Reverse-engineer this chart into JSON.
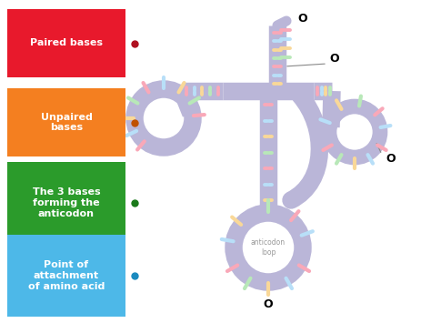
{
  "bg_color": "#ffffff",
  "trna_color": "#bab6d8",
  "trna_lw": 14,
  "base_colors": [
    "#f9a8b8",
    "#b8dff8",
    "#f9d898",
    "#b8e8b8"
  ],
  "anticodon_text": "anticodon\nloop",
  "legend_boxes": [
    {
      "label": "Paired bases",
      "color": "#e8192c",
      "dot_color": "#b01020",
      "lines": 1
    },
    {
      "label": "Unpaired\nbases",
      "color": "#f47f20",
      "dot_color": "#c05000",
      "lines": 2
    },
    {
      "label": "The 3 bases\nforming the\nanticodon",
      "color": "#2b9b2b",
      "dot_color": "#1a7a1a",
      "lines": 3
    },
    {
      "label": "Point of\nattachment\nof amino acid",
      "color": "#4db8e8",
      "dot_color": "#1a8abf",
      "lines": 3
    }
  ],
  "fig_w": 4.74,
  "fig_h": 3.55,
  "dpi": 100
}
